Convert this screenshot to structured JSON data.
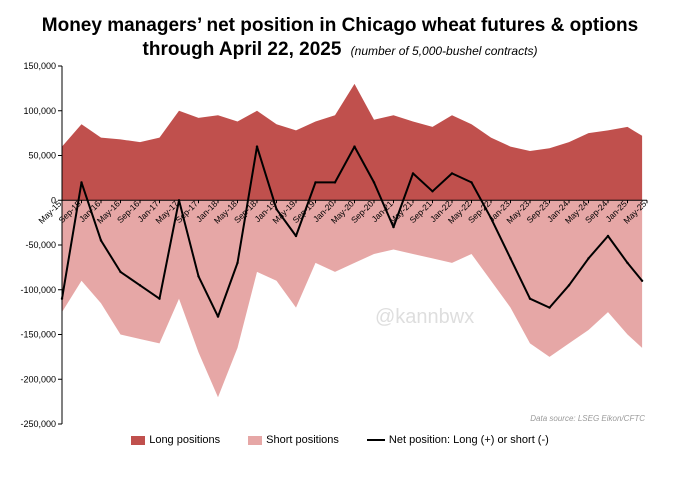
{
  "chart_data": {
    "type": "area",
    "title_line1": "Money managers’ net position in Chicago wheat futures & options",
    "title_line2": "through April 22, 2025",
    "subtitle": "(number of 5,000-bushel contracts)",
    "ylim": [
      -250000,
      150000
    ],
    "yticks": [
      "150,000",
      "100,000",
      "50,000",
      "0",
      "-50,000",
      "-100,000",
      "-150,000",
      "-200,000",
      "-250,000"
    ],
    "ytick_values": [
      150000,
      100000,
      50000,
      0,
      -50000,
      -100000,
      -150000,
      -200000,
      -250000
    ],
    "x_start": "2015-05",
    "x_end": "2025-05",
    "xticks": [
      "May-15",
      "Sep-15",
      "Jan-16",
      "May-16",
      "Sep-16",
      "Jan-17",
      "May-17",
      "Sep-17",
      "Jan-18",
      "May-18",
      "Sep-18",
      "Jan-19",
      "May-19",
      "Sep-19",
      "Jan-20",
      "May-20",
      "Sep-20",
      "Jan-21",
      "May-21",
      "Sep-21",
      "Jan-22",
      "May-22",
      "Sep-22",
      "Jan-23",
      "May-23",
      "Sep-23",
      "Jan-24",
      "May-24",
      "Sep-24",
      "Jan-25",
      "May-25"
    ],
    "x": [
      "2015-05",
      "2015-09",
      "2016-01",
      "2016-05",
      "2016-09",
      "2017-01",
      "2017-05",
      "2017-09",
      "2018-01",
      "2018-05",
      "2018-09",
      "2019-01",
      "2019-05",
      "2019-09",
      "2020-01",
      "2020-05",
      "2020-09",
      "2021-01",
      "2021-05",
      "2021-09",
      "2022-01",
      "2022-05",
      "2022-09",
      "2023-01",
      "2023-05",
      "2023-09",
      "2024-01",
      "2024-05",
      "2024-09",
      "2025-01",
      "2025-04"
    ],
    "series": [
      {
        "name": "Long positions",
        "color": "#c0504d",
        "values": [
          60000,
          85000,
          70000,
          68000,
          65000,
          70000,
          100000,
          92000,
          95000,
          88000,
          100000,
          85000,
          78000,
          88000,
          95000,
          130000,
          90000,
          95000,
          88000,
          82000,
          95000,
          85000,
          70000,
          60000,
          55000,
          58000,
          65000,
          75000,
          78000,
          82000,
          72000
        ]
      },
      {
        "name": "Short positions",
        "color": "#e6a7a6",
        "values": [
          -125000,
          -90000,
          -115000,
          -150000,
          -155000,
          -160000,
          -110000,
          -170000,
          -220000,
          -165000,
          -80000,
          -90000,
          -120000,
          -70000,
          -80000,
          -70000,
          -60000,
          -55000,
          -60000,
          -65000,
          -70000,
          -60000,
          -90000,
          -120000,
          -160000,
          -175000,
          -160000,
          -145000,
          -125000,
          -150000,
          -165000
        ]
      },
      {
        "name": "Net position: Long (+) or short (-)",
        "color": "#000000",
        "values": [
          -110000,
          20000,
          -45000,
          -80000,
          -95000,
          -110000,
          0,
          -85000,
          -130000,
          -70000,
          60000,
          -10000,
          -40000,
          20000,
          20000,
          60000,
          20000,
          -30000,
          30000,
          10000,
          30000,
          20000,
          -20000,
          -65000,
          -110000,
          -120000,
          -95000,
          -65000,
          -40000,
          -70000,
          -90000
        ]
      }
    ],
    "legend_position": "bottom",
    "grid": false,
    "watermark": "@kannbwx",
    "source": "Data source: LSEG Eikon/CFTC"
  }
}
